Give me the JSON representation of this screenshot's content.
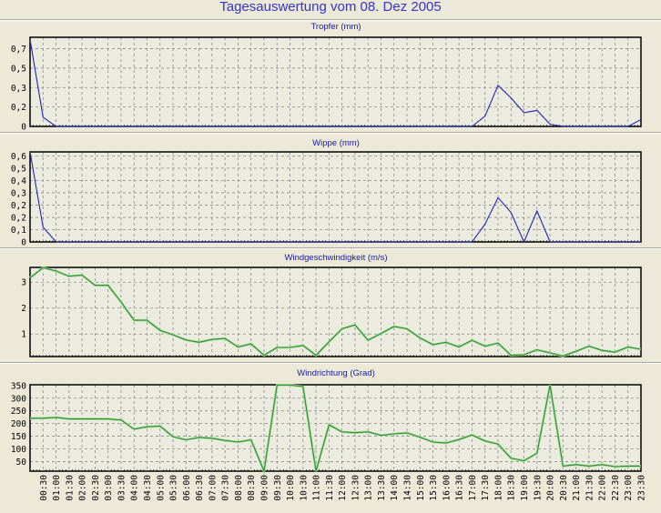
{
  "title": "Tagesauswertung vom 08. Dez 2005",
  "colors": {
    "rain_line": "#2424b0",
    "wind_line": "#2e8b2e",
    "plot_bg": "#ecebe0",
    "grid": "#8a8a8a"
  },
  "x_axis": {
    "start": "00:00",
    "step_minutes": 30,
    "tick_labels": [
      "00:30",
      "01:00",
      "01:30",
      "02:00",
      "02:30",
      "03:00",
      "03:30",
      "04:00",
      "04:30",
      "05:00",
      "05:30",
      "06:00",
      "06:30",
      "07:00",
      "07:30",
      "08:00",
      "08:30",
      "09:00",
      "09:30",
      "10:00",
      "10:30",
      "11:00",
      "11:30",
      "12:00",
      "12:30",
      "13:00",
      "13:30",
      "14:00",
      "14:30",
      "15:00",
      "15:30",
      "16:00",
      "16:30",
      "17:00",
      "17:30",
      "18:00",
      "18:30",
      "19:00",
      "19:30",
      "20:00",
      "20:30",
      "21:00",
      "21:30",
      "22:00",
      "22:30",
      "23:00",
      "23:30"
    ]
  },
  "chart_data": [
    {
      "type": "line",
      "title": "Tropfer (mm)",
      "ylim": [
        0,
        0.78
      ],
      "yticks": [
        0,
        0.17,
        0.34,
        0.51,
        0.68
      ],
      "ytick_labels": [
        "0",
        "0,2",
        "0,3",
        "0,5",
        "0,7"
      ],
      "color": "#2424b0",
      "grid": true,
      "values": [
        0.76,
        0.08,
        0,
        0,
        0,
        0,
        0,
        0,
        0,
        0,
        0,
        0,
        0,
        0,
        0,
        0,
        0,
        0,
        0,
        0,
        0,
        0,
        0,
        0,
        0,
        0,
        0,
        0,
        0,
        0,
        0,
        0,
        0,
        0,
        0,
        0.09,
        0.36,
        0.25,
        0.12,
        0.14,
        0.02,
        0,
        0,
        0,
        0,
        0,
        0,
        0.06
      ]
    },
    {
      "type": "line",
      "title": "Wippe (mm)",
      "ylim": [
        0,
        0.61
      ],
      "yticks": [
        0,
        0.083,
        0.166,
        0.25,
        0.333,
        0.416,
        0.5,
        0.583
      ],
      "ytick_labels": [
        "0",
        "0,1",
        "0,2",
        "0,2",
        "0,3",
        "0,4",
        "0,5",
        "0,6"
      ],
      "color": "#2424b0",
      "grid": true,
      "values": [
        0.61,
        0.1,
        0,
        0,
        0,
        0,
        0,
        0,
        0,
        0,
        0,
        0,
        0,
        0,
        0,
        0,
        0,
        0,
        0,
        0,
        0,
        0,
        0,
        0,
        0,
        0,
        0,
        0,
        0,
        0,
        0,
        0,
        0,
        0,
        0,
        0.12,
        0.3,
        0.2,
        0,
        0.21,
        0,
        0,
        0,
        0,
        0,
        0,
        0,
        0
      ]
    },
    {
      "type": "line",
      "title": "Windgeschwindigkeit (m/s)",
      "ylim": [
        0.13,
        3.57
      ],
      "yticks": [
        1,
        2,
        3
      ],
      "ytick_labels": [
        "1",
        "2",
        "3"
      ],
      "color": "#2e8b2e",
      "grid": true,
      "values": [
        3.17,
        3.56,
        3.43,
        3.23,
        3.27,
        2.88,
        2.88,
        2.24,
        1.53,
        1.53,
        1.14,
        0.97,
        0.77,
        0.68,
        0.79,
        0.83,
        0.5,
        0.62,
        0.18,
        0.48,
        0.48,
        0.56,
        0.18,
        0.7,
        1.2,
        1.35,
        0.76,
        1.02,
        1.29,
        1.2,
        0.85,
        0.59,
        0.68,
        0.5,
        0.76,
        0.53,
        0.65,
        0.18,
        0.2,
        0.39,
        0.27,
        0.15,
        0.33,
        0.53,
        0.37,
        0.3,
        0.5,
        0.41
      ]
    },
    {
      "type": "line",
      "title": "Windrichtung (Grad)",
      "ylim": [
        12,
        353
      ],
      "yticks": [
        50,
        100,
        150,
        200,
        250,
        300,
        350
      ],
      "ytick_labels": [
        "50",
        "100",
        "150",
        "200",
        "250",
        "300",
        "350"
      ],
      "color": "#2e8b2e",
      "grid": true,
      "values": [
        221,
        221,
        224,
        218,
        218,
        218,
        218,
        214,
        178,
        187,
        190,
        148,
        136,
        145,
        142,
        133,
        127,
        136,
        12,
        352,
        352,
        346,
        12,
        195,
        167,
        164,
        167,
        153,
        159,
        163,
        146,
        127,
        123,
        137,
        155,
        131,
        119,
        63,
        53,
        83,
        352,
        32,
        38,
        32,
        38,
        30,
        32,
        32
      ]
    }
  ]
}
